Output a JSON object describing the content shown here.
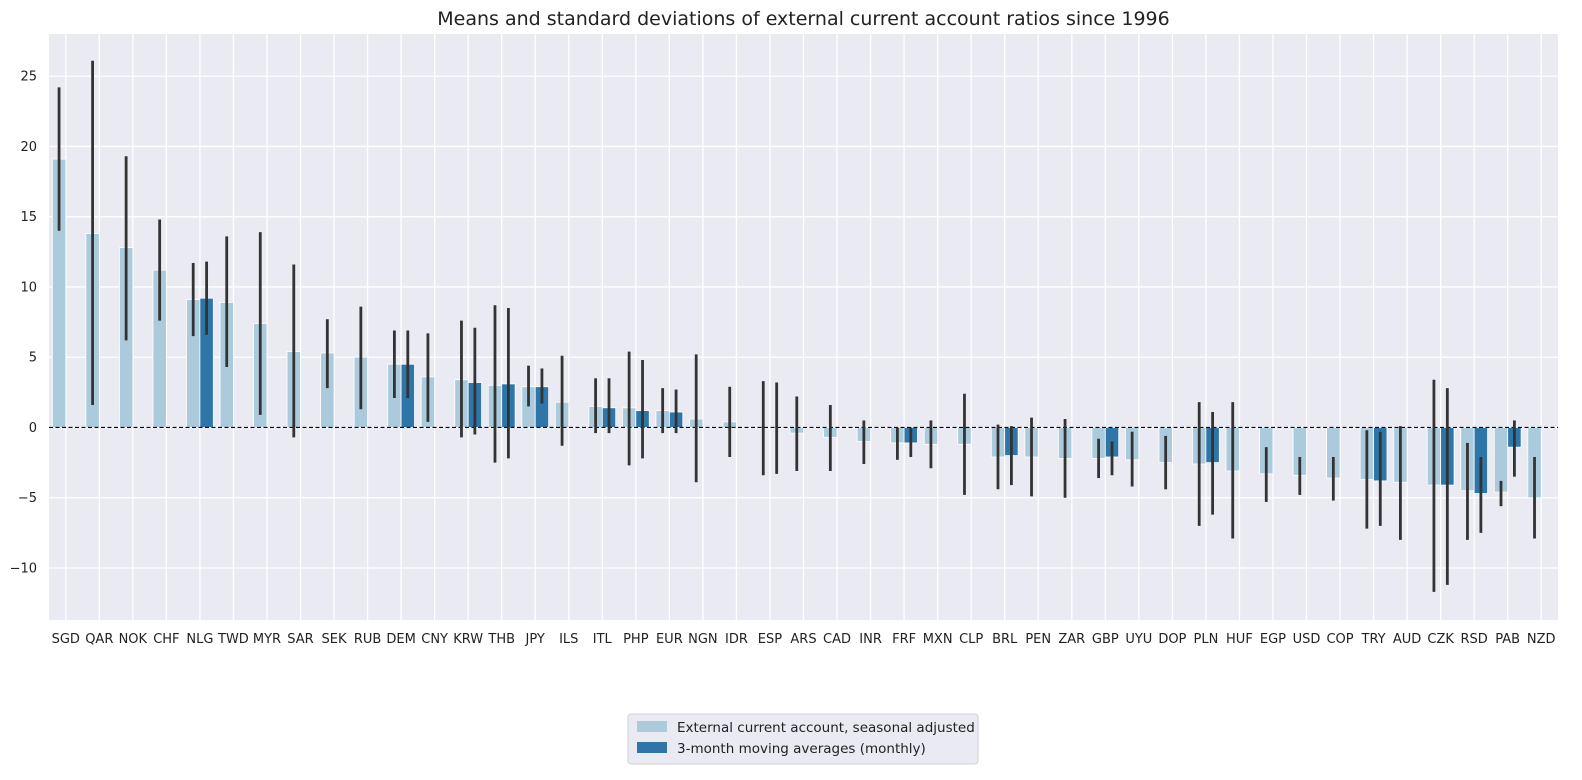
{
  "chart_data": {
    "type": "bar",
    "title": "Means and standard deviations of external current account ratios since 1996",
    "xlabel": "",
    "ylabel": "",
    "ylim": [
      -13.7,
      28.0
    ],
    "yticks": [
      -10,
      -5,
      0,
      5,
      10,
      15,
      20,
      25
    ],
    "grid": true,
    "reference_line": 0,
    "legend_position": "bottom-center",
    "colors": {
      "background": "#eaeaf2",
      "grid": "#ffffff",
      "series_1": "#abcbdd",
      "series_2": "#2e75a8",
      "error_bar": "#333333",
      "zero_line": "#000000",
      "text": "#222222"
    },
    "categories": [
      "SGD",
      "QAR",
      "NOK",
      "CHF",
      "NLG",
      "TWD",
      "MYR",
      "SAR",
      "SEK",
      "RUB",
      "DEM",
      "CNY",
      "KRW",
      "THB",
      "JPY",
      "ILS",
      "ITL",
      "PHP",
      "EUR",
      "NGN",
      "IDR",
      "ESP",
      "ARS",
      "CAD",
      "INR",
      "FRF",
      "MXN",
      "CLP",
      "BRL",
      "PEN",
      "ZAR",
      "GBP",
      "UYU",
      "DOP",
      "PLN",
      "HUF",
      "EGP",
      "USD",
      "COP",
      "TRY",
      "AUD",
      "CZK",
      "RSD",
      "PAB",
      "NZD"
    ],
    "series": [
      {
        "name": "External current account, seasonal adjusted",
        "values": [
          19.1,
          13.8,
          12.8,
          11.2,
          9.1,
          8.9,
          7.4,
          5.4,
          5.3,
          5.0,
          4.5,
          3.6,
          3.4,
          3.0,
          2.9,
          1.8,
          1.5,
          1.4,
          1.2,
          0.6,
          0.4,
          0.0,
          -0.4,
          -0.7,
          -1.0,
          -1.1,
          -1.2,
          -1.2,
          -2.1,
          -2.1,
          -2.2,
          -2.2,
          -2.3,
          -2.5,
          -2.6,
          -3.1,
          -3.3,
          -3.4,
          -3.6,
          -3.7,
          -3.9,
          -4.1,
          -4.5,
          -4.6,
          -5.0
        ],
        "err_low": [
          14.0,
          1.6,
          6.2,
          7.6,
          6.5,
          4.3,
          0.9,
          -0.7,
          2.8,
          1.3,
          2.1,
          0.4,
          -0.7,
          -2.5,
          1.5,
          -1.3,
          -0.4,
          -2.7,
          -0.4,
          -3.9,
          -2.1,
          -3.4,
          -3.1,
          -3.1,
          -2.6,
          -2.3,
          -2.9,
          -4.8,
          -4.4,
          -4.9,
          -5.0,
          -3.6,
          -4.2,
          -4.4,
          -7.0,
          -7.9,
          -5.3,
          -4.8,
          -5.2,
          -7.2,
          -8.0,
          -11.7,
          -8.0,
          -5.6,
          -7.9
        ],
        "err_high": [
          24.2,
          26.1,
          19.3,
          14.8,
          11.7,
          13.6,
          13.9,
          11.6,
          7.7,
          8.6,
          6.9,
          6.7,
          7.6,
          8.7,
          4.4,
          5.1,
          3.5,
          5.4,
          2.8,
          5.2,
          2.9,
          3.3,
          2.2,
          1.6,
          0.5,
          0.0,
          0.5,
          2.4,
          0.2,
          0.7,
          0.6,
          -0.8,
          -0.3,
          -0.6,
          1.8,
          1.8,
          -1.4,
          -2.1,
          -2.1,
          -0.2,
          0.1,
          3.4,
          -1.1,
          -3.8,
          -2.1
        ]
      },
      {
        "name": "3-month moving averages (monthly)",
        "values": [
          null,
          null,
          null,
          null,
          9.2,
          null,
          null,
          null,
          null,
          null,
          4.5,
          null,
          3.2,
          3.1,
          2.9,
          null,
          1.4,
          1.2,
          1.1,
          null,
          null,
          0.0,
          null,
          null,
          null,
          -1.1,
          null,
          null,
          -2.0,
          null,
          null,
          -2.1,
          null,
          null,
          -2.5,
          null,
          null,
          null,
          null,
          -3.8,
          null,
          -4.1,
          -4.7,
          -1.4,
          null
        ],
        "err_low": [
          null,
          null,
          null,
          null,
          6.6,
          null,
          null,
          null,
          null,
          null,
          2.1,
          null,
          -0.5,
          -2.2,
          1.7,
          null,
          -0.4,
          -2.2,
          -0.4,
          null,
          null,
          -3.3,
          null,
          null,
          null,
          -2.1,
          null,
          null,
          -4.1,
          null,
          null,
          -3.4,
          null,
          null,
          -6.2,
          null,
          null,
          null,
          null,
          -7.0,
          null,
          -11.2,
          -7.5,
          -3.5,
          null
        ],
        "err_high": [
          null,
          null,
          null,
          null,
          11.8,
          null,
          null,
          null,
          null,
          null,
          6.9,
          null,
          7.1,
          8.5,
          4.2,
          null,
          3.5,
          4.8,
          2.7,
          null,
          null,
          3.2,
          null,
          null,
          null,
          0.0,
          null,
          null,
          0.1,
          null,
          null,
          -1.0,
          null,
          null,
          1.1,
          null,
          null,
          null,
          null,
          -0.3,
          null,
          2.8,
          -2.1,
          0.5,
          null
        ]
      }
    ]
  }
}
